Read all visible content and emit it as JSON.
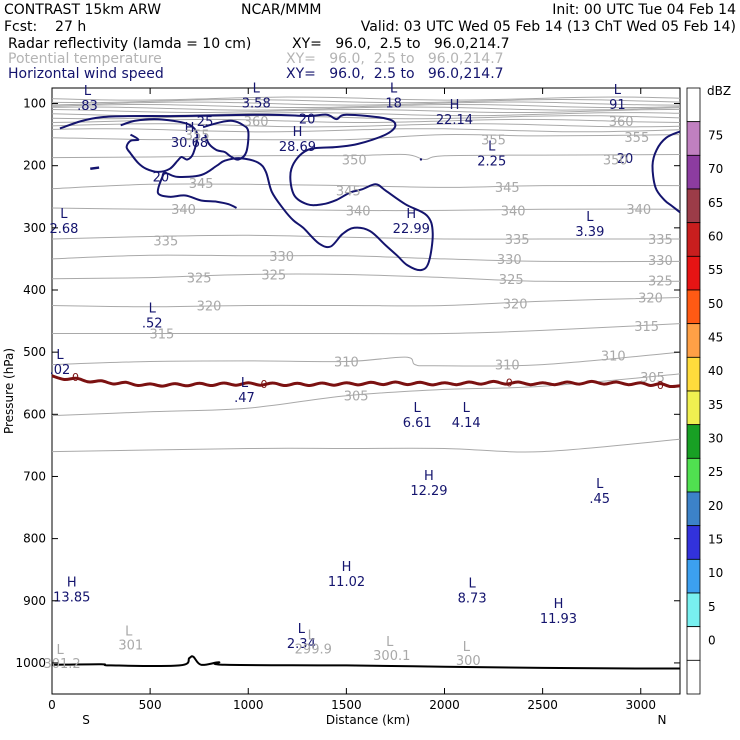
{
  "header": {
    "line1_left": "CONTRAST 15km ARW",
    "line1_mid": "NCAR/MMM",
    "line1_right": "Init: 00 UTC Tue 04 Feb 14",
    "line2_left": "Fcst:    27 h",
    "line2_right": "Valid: 03 UTC Wed 05 Feb 14 (13 ChT Wed 05 Feb 14)",
    "fields": [
      {
        "name": "Radar reflectivity (lamda = 10 cm)",
        "xy": "XY=   96.0,  2.5 to   96.0,214.7",
        "color": "#000000"
      },
      {
        "name": "Potential temperature",
        "xy": "XY=   96.0,  2.5 to   96.0,214.7",
        "color": "#b4b4b4"
      },
      {
        "name": "Horizontal wind speed",
        "xy": "XY=   96.0,  2.5 to   96.0,214.7",
        "color": "#14146e"
      }
    ]
  },
  "chart_data": {
    "type": "line",
    "title": "",
    "xlabel": "Distance (km)",
    "ylabel": "Pressure (hPa)",
    "xlim": [
      0,
      3200
    ],
    "ylim": [
      1050,
      75
    ],
    "x_ticks": [
      "0",
      "500",
      "1000",
      "1500",
      "2000",
      "2500",
      "3000"
    ],
    "y_ticks": [
      "100",
      "200",
      "300",
      "400",
      "500",
      "600",
      "700",
      "800",
      "900",
      "1000"
    ],
    "x_end_labels": {
      "left": "S",
      "right": "N"
    },
    "theta_color": "#a9a9a9",
    "wind_color": "#14146e",
    "zero_line_color": "#7b1111",
    "terrain_color": "#000000",
    "theta_isentropes": [
      {
        "value": 355,
        "points": [
          [
            0,
            155
          ],
          [
            500,
            158
          ],
          [
            1000,
            158
          ],
          [
            1500,
            158
          ],
          [
            2000,
            150
          ],
          [
            2500,
            152
          ],
          [
            3200,
            150
          ]
        ]
      },
      {
        "value": 350,
        "points": [
          [
            0,
            187
          ],
          [
            500,
            186
          ],
          [
            1000,
            184
          ],
          [
            1500,
            184
          ],
          [
            1800,
            182
          ],
          [
            1900,
            190
          ],
          [
            2000,
            184
          ],
          [
            2500,
            183
          ],
          [
            3200,
            182
          ]
        ]
      },
      {
        "value": 345,
        "points": [
          [
            0,
            237
          ],
          [
            500,
            230
          ],
          [
            1000,
            230
          ],
          [
            1500,
            232
          ],
          [
            2000,
            235
          ],
          [
            2500,
            232
          ],
          [
            3200,
            232
          ]
        ]
      },
      {
        "value": 340,
        "points": [
          [
            0,
            268
          ],
          [
            500,
            270
          ],
          [
            1000,
            270
          ],
          [
            1500,
            272
          ],
          [
            2000,
            272
          ],
          [
            2500,
            270
          ],
          [
            3200,
            270
          ]
        ]
      },
      {
        "value": 335,
        "points": [
          [
            0,
            318
          ],
          [
            500,
            314
          ],
          [
            1000,
            312
          ],
          [
            1500,
            315
          ],
          [
            2000,
            318
          ],
          [
            2500,
            318
          ],
          [
            3200,
            318
          ]
        ]
      },
      {
        "value": 330,
        "points": [
          [
            0,
            350
          ],
          [
            500,
            344
          ],
          [
            1000,
            345
          ],
          [
            1500,
            345
          ],
          [
            2000,
            350
          ],
          [
            2500,
            354
          ],
          [
            3200,
            354
          ]
        ]
      },
      {
        "value": 325,
        "points": [
          [
            0,
            382
          ],
          [
            500,
            380
          ],
          [
            1000,
            375
          ],
          [
            1500,
            375
          ],
          [
            2000,
            380
          ],
          [
            2500,
            386
          ],
          [
            3200,
            386
          ]
        ]
      },
      {
        "value": 320,
        "points": [
          [
            0,
            425
          ],
          [
            500,
            427
          ],
          [
            1000,
            425
          ],
          [
            1500,
            425
          ],
          [
            2000,
            425
          ],
          [
            2500,
            418
          ],
          [
            3200,
            412
          ]
        ]
      },
      {
        "value": 315,
        "points": [
          [
            0,
            470
          ],
          [
            500,
            470
          ],
          [
            1000,
            470
          ],
          [
            1500,
            470
          ],
          [
            2000,
            470
          ],
          [
            2500,
            465
          ],
          [
            3200,
            454
          ]
        ]
      },
      {
        "value": 310,
        "points": [
          [
            0,
            520
          ],
          [
            500,
            515
          ],
          [
            1000,
            514
          ],
          [
            1500,
            515
          ],
          [
            1800,
            508
          ],
          [
            1850,
            520
          ],
          [
            1950,
            522
          ],
          [
            2500,
            520
          ],
          [
            3200,
            500
          ]
        ]
      },
      {
        "value": 305,
        "points": [
          [
            0,
            602
          ],
          [
            500,
            596
          ],
          [
            1000,
            590
          ],
          [
            1500,
            570
          ],
          [
            2000,
            560
          ],
          [
            2500,
            555
          ],
          [
            3200,
            535
          ]
        ]
      },
      {
        "value": 300,
        "points": [
          [
            0,
            660
          ],
          [
            1000,
            655
          ],
          [
            1500,
            655
          ],
          [
            2000,
            655
          ],
          [
            2500,
            660
          ],
          [
            3200,
            640
          ]
        ]
      }
    ],
    "wind_speed_max_label": {
      "label": "H",
      "value": "22.14"
    },
    "reflectivity_zero_contour": [
      [
        0,
        540
      ],
      [
        250,
        548
      ],
      [
        500,
        553
      ],
      [
        750,
        552
      ],
      [
        1000,
        551
      ],
      [
        1250,
        552
      ],
      [
        1500,
        551
      ],
      [
        1750,
        550
      ],
      [
        2000,
        551
      ],
      [
        2250,
        549
      ],
      [
        2500,
        551
      ],
      [
        2750,
        549
      ],
      [
        3000,
        551
      ],
      [
        3200,
        554
      ]
    ],
    "terrain": [
      [
        0,
        1003
      ],
      [
        250,
        1002
      ],
      [
        300,
        1004
      ],
      [
        650,
        1004
      ],
      [
        700,
        992
      ],
      [
        720,
        990
      ],
      [
        760,
        1003
      ],
      [
        850,
        999
      ],
      [
        880,
        1003
      ],
      [
        1500,
        1004
      ],
      [
        2000,
        1006
      ],
      [
        2500,
        1008
      ],
      [
        3000,
        1009
      ],
      [
        3200,
        1009
      ]
    ],
    "extrema_labels": [
      {
        "type": "L",
        "value": ".83"
      },
      {
        "type": "L",
        "value": "3.58"
      },
      {
        "type": "L",
        "value": "18"
      },
      {
        "type": "L",
        "value": "91"
      },
      {
        "type": "H",
        "value": "22.14"
      },
      {
        "type": "H",
        "value": "30.68"
      },
      {
        "type": "H",
        "value": "28.69"
      },
      {
        "type": "L",
        "value": "2.25"
      },
      {
        "type": "L",
        "value": "2.68"
      },
      {
        "type": "H",
        "value": "22.99"
      },
      {
        "type": "L",
        "value": "3.39"
      },
      {
        "type": "L",
        "value": ".52"
      },
      {
        "type": "L",
        "value": ".02"
      },
      {
        "type": "L",
        "value": ".47"
      },
      {
        "type": "L",
        "value": "6.61"
      },
      {
        "type": "L",
        "value": "4.14"
      },
      {
        "type": "H",
        "value": "12.29"
      },
      {
        "type": "L",
        "value": ".45"
      },
      {
        "type": "H",
        "value": "11.02"
      },
      {
        "type": "H",
        "value": "13.85"
      },
      {
        "type": "L",
        "value": "8.73"
      },
      {
        "type": "H",
        "value": "11.93"
      },
      {
        "type": "L",
        "value": "2.34"
      }
    ],
    "theta_extrema_labels": [
      {
        "type": "L",
        "value": "301"
      },
      {
        "type": "L",
        "value": "299.9"
      },
      {
        "type": "L",
        "value": "300.1"
      },
      {
        "type": "L",
        "value": "300"
      },
      {
        "type": "L",
        "value": "301.2"
      }
    ],
    "wind_contour_labels": [
      "25",
      "20",
      "20",
      "20",
      "20"
    ],
    "theta_contour_labels": [
      "360",
      "355",
      "350",
      "345",
      "340",
      "335",
      "330",
      "325",
      "320",
      "315",
      "310",
      "305",
      "300"
    ],
    "reflectivity_contour_label": "0"
  },
  "colorbar": {
    "unit": "dBZ",
    "levels": [
      "75",
      "70",
      "65",
      "60",
      "55",
      "50",
      "45",
      "40",
      "35",
      "30",
      "25",
      "20",
      "15",
      "10",
      "5",
      "0"
    ],
    "colors": [
      "#ffffff",
      "#c080c0",
      "#8c3ca0",
      "#9c3c48",
      "#c81e1e",
      "#e61414",
      "#ff5a14",
      "#ffa046",
      "#ffdc3c",
      "#f0f050",
      "#18a024",
      "#50e050",
      "#3c82c8",
      "#3232dc",
      "#3ca0f0",
      "#78f0f0",
      "#ffffff",
      "#ffffff"
    ]
  }
}
